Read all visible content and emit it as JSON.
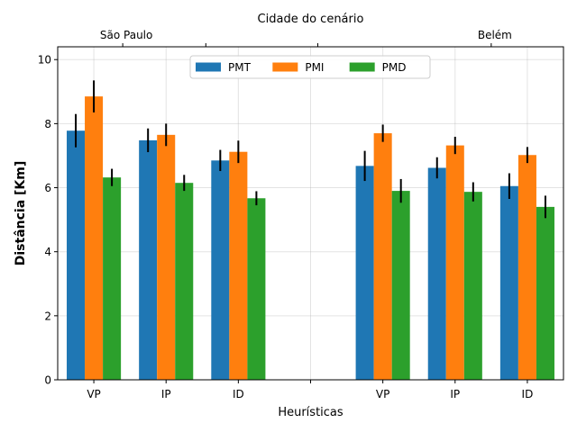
{
  "chart_data": {
    "type": "bar",
    "xlabel": "Heurísticas",
    "ylabel": "Distância [Km]",
    "top_axis_label": "Cidade do cenário",
    "top_tick_labels": [
      "São Paulo",
      "Belém"
    ],
    "ylim": [
      0,
      10.4
    ],
    "yticks": [
      0,
      2,
      4,
      6,
      8,
      10
    ],
    "grid": true,
    "legend_position": "top-center",
    "categories": [
      "VP",
      "IP",
      "ID",
      "",
      "VP",
      "IP",
      "ID"
    ],
    "series": [
      {
        "name": "PMT",
        "color": "#1f77b4",
        "values": [
          7.78,
          7.48,
          6.85,
          null,
          6.68,
          6.62,
          6.05
        ],
        "errors": [
          0.52,
          0.37,
          0.33,
          null,
          0.47,
          0.33,
          0.4
        ]
      },
      {
        "name": "PMI",
        "color": "#ff7f0e",
        "values": [
          8.85,
          7.65,
          7.12,
          null,
          7.7,
          7.32,
          7.02
        ],
        "errors": [
          0.5,
          0.35,
          0.35,
          null,
          0.27,
          0.27,
          0.25
        ]
      },
      {
        "name": "PMD",
        "color": "#2ca02c",
        "values": [
          6.32,
          6.15,
          5.67,
          null,
          5.9,
          5.87,
          5.4
        ],
        "errors": [
          0.27,
          0.25,
          0.22,
          null,
          0.37,
          0.3,
          0.35
        ]
      }
    ]
  }
}
